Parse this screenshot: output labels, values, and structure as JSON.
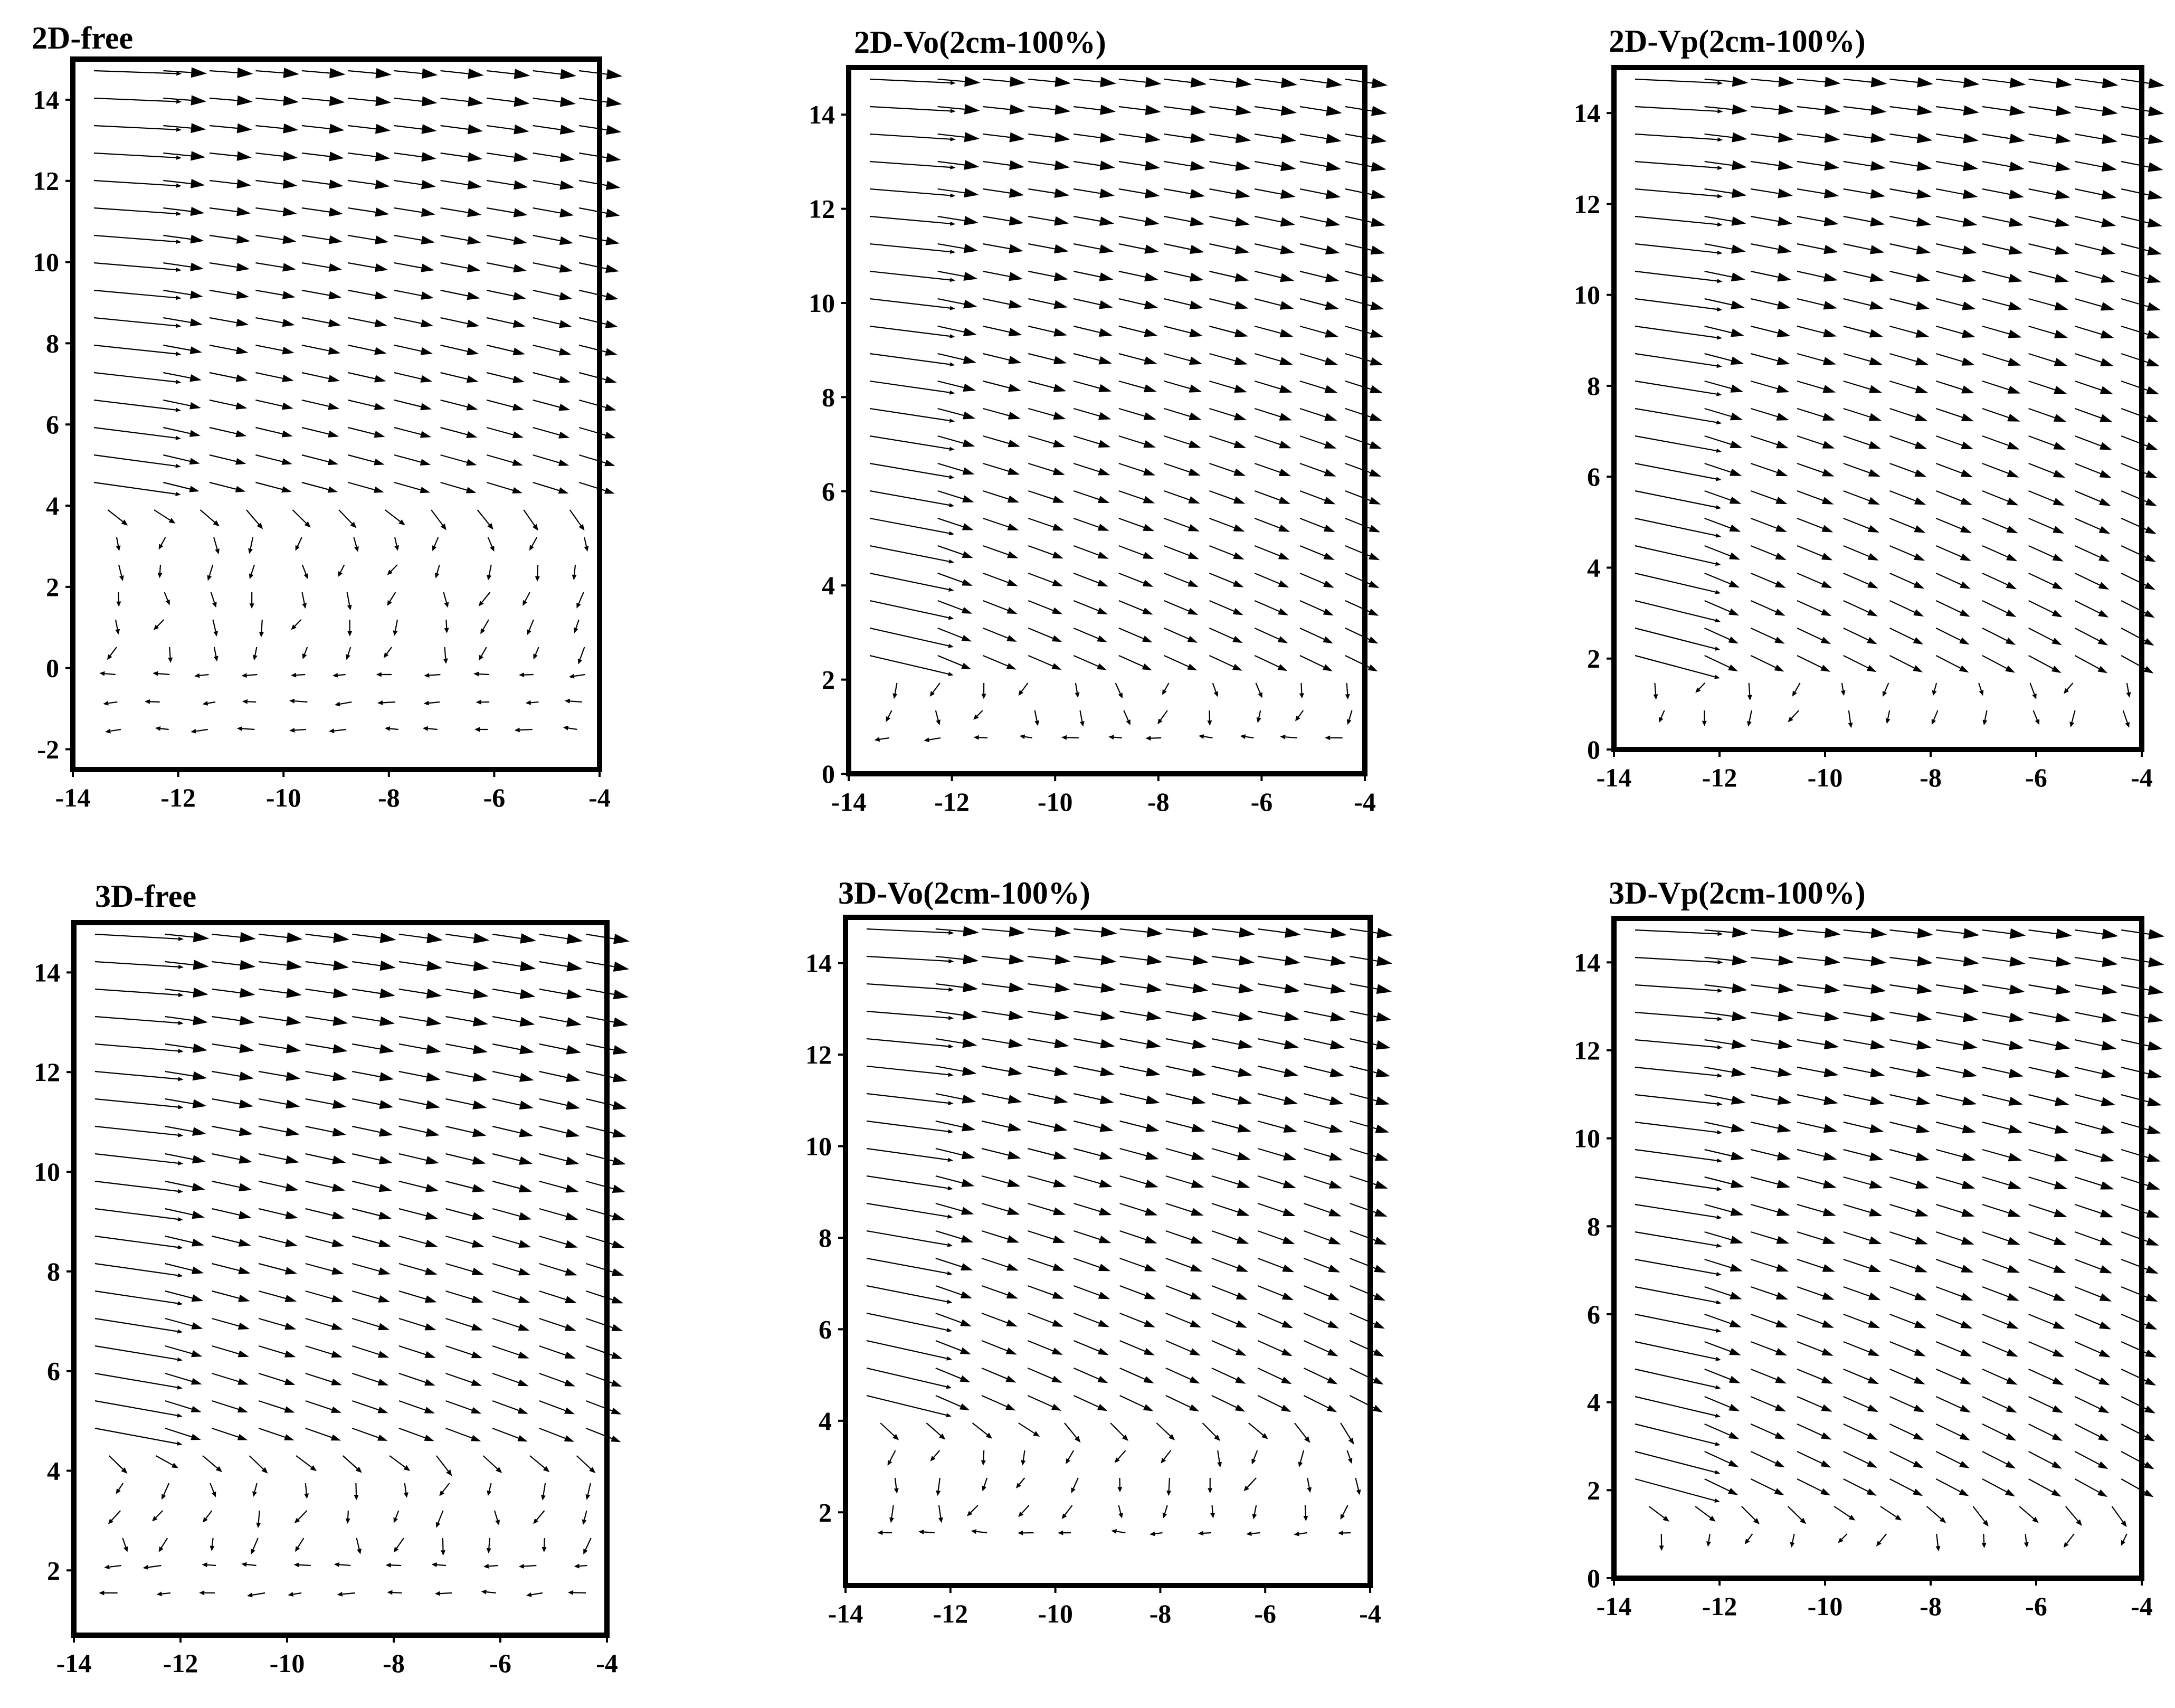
{
  "figure": {
    "background": "#ffffff",
    "arrow_color": "#000000"
  },
  "chart_data": [
    {
      "type": "quiver",
      "title": "2D-free",
      "xlim": [
        -14,
        -4
      ],
      "ylim": [
        -2.5,
        15
      ],
      "xticks": [
        -14,
        -12,
        -10,
        -8,
        -6,
        -4
      ],
      "yticks": [
        -2,
        0,
        2,
        4,
        6,
        8,
        10,
        12,
        14
      ],
      "grid": false,
      "flow_regime": "free",
      "upper_region": {
        "y_from": 4.0,
        "angle_top_deg": -3,
        "angle_bottom_deg": -14
      },
      "lower_region": {
        "description_values": {
          "y_split": 3.5,
          "recirculation": true
        }
      }
    },
    {
      "type": "quiver",
      "title": "2D-Vo(2cm-100%)",
      "xlim": [
        -14,
        -4
      ],
      "ylim": [
        0,
        15
      ],
      "xticks": [
        -14,
        -12,
        -10,
        -8,
        -6,
        -4
      ],
      "yticks": [
        0,
        2,
        4,
        6,
        8,
        10,
        12,
        14
      ],
      "grid": false,
      "flow_regime": "Vo",
      "upper_region": {
        "y_from": 2.5,
        "angle_top_deg": -4,
        "angle_bottom_deg": -22
      },
      "lower_region": {
        "description_values": {
          "y_split": 2.0,
          "recirculation": true
        }
      }
    },
    {
      "type": "quiver",
      "title": "2D-Vp(2cm-100%)",
      "xlim": [
        -14,
        -4
      ],
      "ylim": [
        0,
        15
      ],
      "xticks": [
        -14,
        -12,
        -10,
        -8,
        -6,
        -4
      ],
      "yticks": [
        0,
        2,
        4,
        6,
        8,
        10,
        12,
        14
      ],
      "grid": false,
      "flow_regime": "Vp",
      "upper_region": {
        "y_from": 2.0,
        "angle_top_deg": -4,
        "angle_bottom_deg": -25
      },
      "lower_region": {
        "description_values": {
          "y_split": 1.8,
          "recirculation": true
        }
      }
    },
    {
      "type": "quiver",
      "title": "3D-free",
      "xlim": [
        -14,
        -4
      ],
      "ylim": [
        0.7,
        15
      ],
      "xticks": [
        -14,
        -12,
        -10,
        -8,
        -6,
        -4
      ],
      "yticks": [
        2,
        4,
        6,
        8,
        10,
        12,
        14
      ],
      "grid": false,
      "flow_regime": "free",
      "upper_region": {
        "y_from": 4.5,
        "angle_top_deg": -5,
        "angle_bottom_deg": -18
      },
      "lower_region": {
        "description_values": {
          "y_split": 4.0,
          "recirculation": true
        }
      }
    },
    {
      "type": "quiver",
      "title": "3D-Vo(2cm-100%)",
      "xlim": [
        -14,
        -4
      ],
      "ylim": [
        0.4,
        15
      ],
      "xticks": [
        -14,
        -12,
        -10,
        -8,
        -6,
        -4
      ],
      "yticks": [
        2,
        4,
        6,
        8,
        10,
        12,
        14
      ],
      "grid": false,
      "flow_regime": "Vo",
      "upper_region": {
        "y_from": 4.0,
        "angle_top_deg": -4,
        "angle_bottom_deg": -24
      },
      "lower_region": {
        "description_values": {
          "y_split": 3.5,
          "recirculation": true
        }
      }
    },
    {
      "type": "quiver",
      "title": "3D-Vp(2cm-100%)",
      "xlim": [
        -14,
        -4
      ],
      "ylim": [
        0,
        15
      ],
      "xticks": [
        -14,
        -12,
        -10,
        -8,
        -6,
        -4
      ],
      "yticks": [
        0,
        2,
        4,
        6,
        8,
        10,
        12,
        14
      ],
      "grid": false,
      "flow_regime": "Vp",
      "upper_region": {
        "y_from": 1.8,
        "angle_top_deg": -4,
        "angle_bottom_deg": -26
      },
      "lower_region": {
        "description_values": {
          "y_split": 1.6,
          "recirculation": true
        }
      }
    }
  ]
}
